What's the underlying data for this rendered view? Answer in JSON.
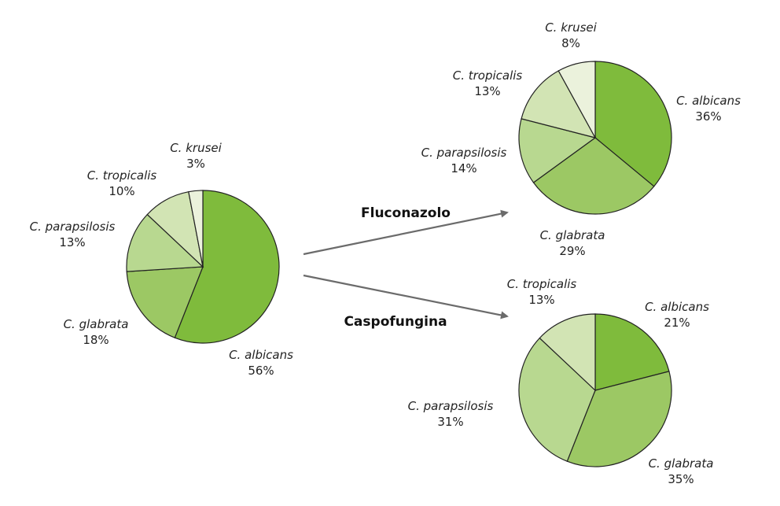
{
  "chart_data": [
    {
      "type": "pie",
      "id": "baseline",
      "title": "",
      "slices": [
        {
          "label": "C. albicans",
          "value": 56,
          "value_label": "56%",
          "color": "#7fbb3c"
        },
        {
          "label": "C. glabrata",
          "value": 18,
          "value_label": "18%",
          "color": "#9cc864"
        },
        {
          "label": "C. parapsilosis",
          "value": 13,
          "value_label": "13%",
          "color": "#b8d890"
        },
        {
          "label": "C. tropicalis",
          "value": 10,
          "value_label": "10%",
          "color": "#d2e4b4"
        },
        {
          "label": "C. krusei",
          "value": 3,
          "value_label": "3%",
          "color": "#ebf2dc"
        }
      ]
    },
    {
      "type": "pie",
      "id": "fluconazolo",
      "title": "",
      "slices": [
        {
          "label": "C. albicans",
          "value": 36,
          "value_label": "36%",
          "color": "#7fbb3c"
        },
        {
          "label": "C. glabrata",
          "value": 29,
          "value_label": "29%",
          "color": "#9cc864"
        },
        {
          "label": "C. parapsilosis",
          "value": 14,
          "value_label": "14%",
          "color": "#b8d890"
        },
        {
          "label": "C. tropicalis",
          "value": 13,
          "value_label": "13%",
          "color": "#d2e4b4"
        },
        {
          "label": "C. krusei",
          "value": 8,
          "value_label": "8%",
          "color": "#ebf2dc"
        }
      ]
    },
    {
      "type": "pie",
      "id": "caspofungina",
      "title": "",
      "slices": [
        {
          "label": "C. albicans",
          "value": 21,
          "value_label": "21%",
          "color": "#7fbb3c"
        },
        {
          "label": "C. glabrata",
          "value": 35,
          "value_label": "35%",
          "color": "#9cc864"
        },
        {
          "label": "C. parapsilosis",
          "value": 31,
          "value_label": "31%",
          "color": "#b8d890"
        },
        {
          "label": "C. tropicalis",
          "value": 13,
          "value_label": "13%",
          "color": "#d2e4b4"
        }
      ]
    }
  ],
  "arrows": [
    {
      "label": "Fluconazolo"
    },
    {
      "label": "Caspofungina"
    }
  ]
}
